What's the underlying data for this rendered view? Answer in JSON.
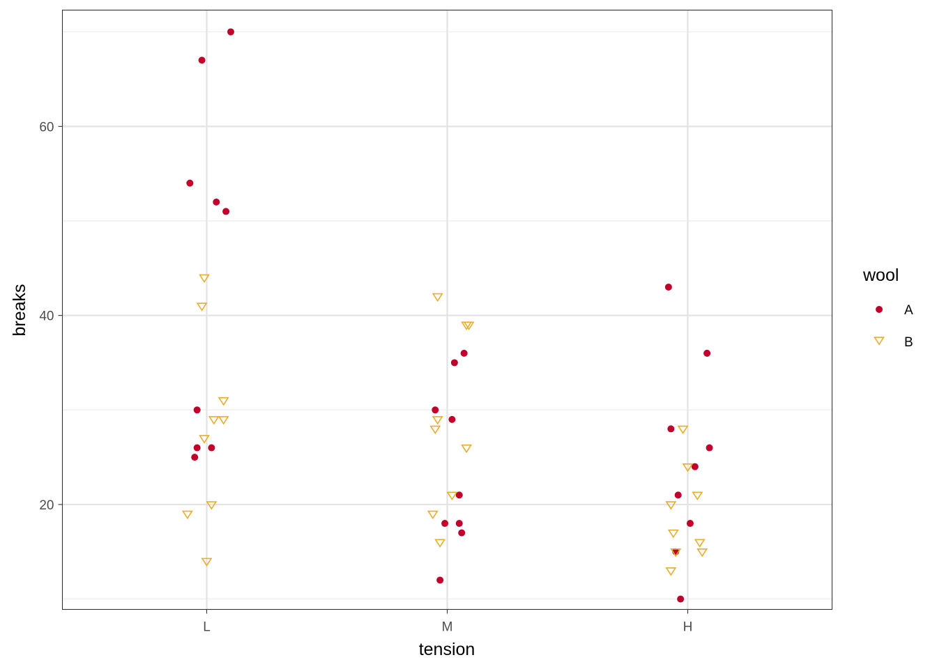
{
  "chart_data": {
    "type": "scatter",
    "xlabel": "tension",
    "ylabel": "breaks",
    "categories": [
      "L",
      "M",
      "H"
    ],
    "ylim": [
      8.9,
      72.3
    ],
    "y_ticks": [
      "20",
      "40",
      "60"
    ],
    "grid": true,
    "legend": {
      "title": "wool",
      "position": "right"
    },
    "colors": {
      "A": "#C0002A",
      "B": "#E8AD2D"
    },
    "series": [
      {
        "name": "A",
        "marker": "circle",
        "points": [
          {
            "x": "L",
            "jitter": 0.1,
            "y": 70
          },
          {
            "x": "L",
            "jitter": -0.02,
            "y": 67
          },
          {
            "x": "L",
            "jitter": -0.07,
            "y": 54
          },
          {
            "x": "L",
            "jitter": 0.04,
            "y": 52
          },
          {
            "x": "L",
            "jitter": 0.08,
            "y": 51
          },
          {
            "x": "L",
            "jitter": -0.04,
            "y": 30
          },
          {
            "x": "L",
            "jitter": -0.04,
            "y": 26
          },
          {
            "x": "L",
            "jitter": 0.02,
            "y": 26
          },
          {
            "x": "L",
            "jitter": -0.05,
            "y": 25
          },
          {
            "x": "M",
            "jitter": 0.07,
            "y": 36
          },
          {
            "x": "M",
            "jitter": 0.03,
            "y": 35
          },
          {
            "x": "M",
            "jitter": -0.05,
            "y": 30
          },
          {
            "x": "M",
            "jitter": 0.02,
            "y": 29
          },
          {
            "x": "M",
            "jitter": 0.05,
            "y": 21
          },
          {
            "x": "M",
            "jitter": -0.01,
            "y": 18
          },
          {
            "x": "M",
            "jitter": 0.05,
            "y": 18
          },
          {
            "x": "M",
            "jitter": 0.06,
            "y": 17
          },
          {
            "x": "M",
            "jitter": -0.03,
            "y": 12
          },
          {
            "x": "H",
            "jitter": -0.08,
            "y": 43
          },
          {
            "x": "H",
            "jitter": 0.08,
            "y": 36
          },
          {
            "x": "H",
            "jitter": -0.07,
            "y": 28
          },
          {
            "x": "H",
            "jitter": 0.09,
            "y": 26
          },
          {
            "x": "H",
            "jitter": 0.03,
            "y": 24
          },
          {
            "x": "H",
            "jitter": -0.04,
            "y": 21
          },
          {
            "x": "H",
            "jitter": 0.01,
            "y": 18
          },
          {
            "x": "H",
            "jitter": -0.05,
            "y": 15
          },
          {
            "x": "H",
            "jitter": -0.03,
            "y": 10
          }
        ]
      },
      {
        "name": "B",
        "marker": "triangle-down",
        "points": [
          {
            "x": "L",
            "jitter": -0.01,
            "y": 44
          },
          {
            "x": "L",
            "jitter": -0.02,
            "y": 41
          },
          {
            "x": "L",
            "jitter": 0.07,
            "y": 31
          },
          {
            "x": "L",
            "jitter": 0.03,
            "y": 29
          },
          {
            "x": "L",
            "jitter": 0.07,
            "y": 29
          },
          {
            "x": "L",
            "jitter": -0.01,
            "y": 27
          },
          {
            "x": "L",
            "jitter": 0.02,
            "y": 20
          },
          {
            "x": "L",
            "jitter": -0.08,
            "y": 19
          },
          {
            "x": "L",
            "jitter": 0.0,
            "y": 14
          },
          {
            "x": "M",
            "jitter": -0.04,
            "y": 42
          },
          {
            "x": "M",
            "jitter": 0.08,
            "y": 39
          },
          {
            "x": "M",
            "jitter": 0.09,
            "y": 39
          },
          {
            "x": "M",
            "jitter": -0.04,
            "y": 29
          },
          {
            "x": "M",
            "jitter": -0.05,
            "y": 28
          },
          {
            "x": "M",
            "jitter": 0.08,
            "y": 26
          },
          {
            "x": "M",
            "jitter": 0.02,
            "y": 21
          },
          {
            "x": "M",
            "jitter": -0.06,
            "y": 19
          },
          {
            "x": "M",
            "jitter": -0.03,
            "y": 16
          },
          {
            "x": "H",
            "jitter": -0.02,
            "y": 28
          },
          {
            "x": "H",
            "jitter": 0.0,
            "y": 24
          },
          {
            "x": "H",
            "jitter": 0.04,
            "y": 21
          },
          {
            "x": "H",
            "jitter": -0.07,
            "y": 20
          },
          {
            "x": "H",
            "jitter": -0.06,
            "y": 17
          },
          {
            "x": "H",
            "jitter": 0.05,
            "y": 16
          },
          {
            "x": "H",
            "jitter": -0.05,
            "y": 15
          },
          {
            "x": "H",
            "jitter": 0.06,
            "y": 15
          },
          {
            "x": "H",
            "jitter": -0.07,
            "y": 13
          }
        ]
      }
    ]
  }
}
